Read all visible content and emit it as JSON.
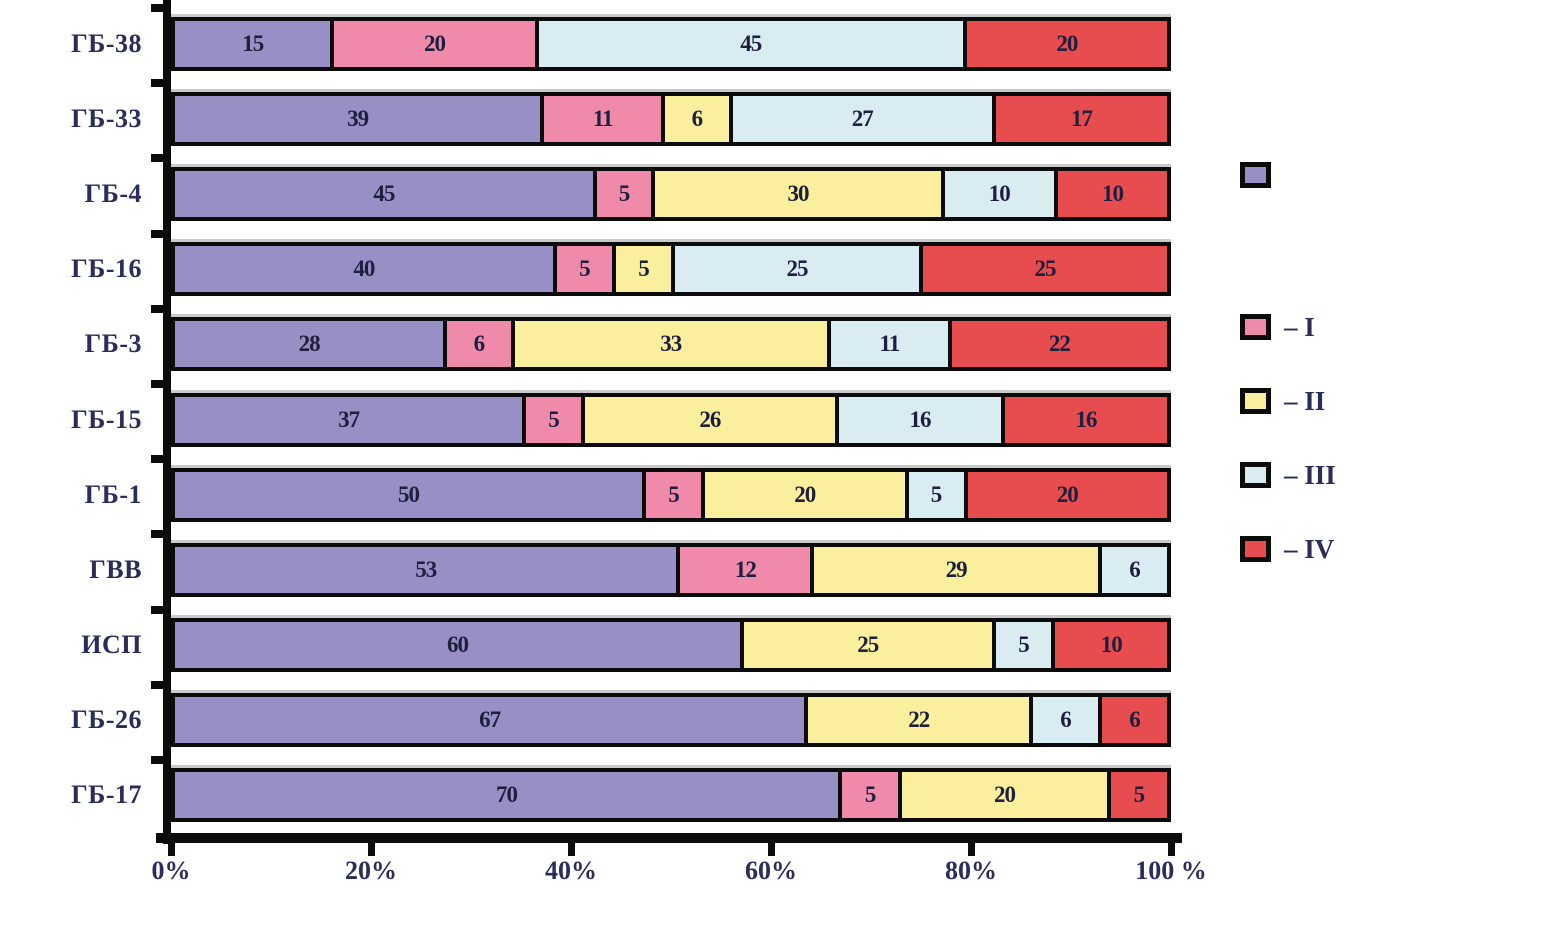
{
  "chart_data": {
    "type": "bar",
    "orientation": "horizontal-stacked",
    "title": "",
    "xlabel": "",
    "ylabel": "",
    "xlim": [
      0,
      100
    ],
    "grid": false,
    "legend_position": "right",
    "x_ticks": [
      "0%",
      "20%",
      "40%",
      "60%",
      "80%",
      "100 %"
    ],
    "categories": [
      "ГБ-38",
      "ГБ-33",
      "ГБ-4",
      "ГБ-16",
      "ГБ-3",
      "ГБ-15",
      "ГБ-1",
      "ГВВ",
      "ИСП",
      "ГБ-26",
      "ГБ-17"
    ],
    "series": [
      {
        "name": "base",
        "legend_label": "",
        "color": "#988fc4",
        "values": [
          15,
          39,
          45,
          40,
          28,
          37,
          50,
          53,
          60,
          67,
          70
        ]
      },
      {
        "name": "I",
        "legend_label": "– I",
        "color": "#f08aab",
        "values": [
          20,
          11,
          5,
          5,
          6,
          5,
          5,
          12,
          0,
          0,
          5
        ]
      },
      {
        "name": "II",
        "legend_label": "– II",
        "color": "#f9ef9d",
        "values": [
          0,
          6,
          30,
          5,
          33,
          26,
          20,
          29,
          25,
          22,
          20
        ]
      },
      {
        "name": "III",
        "legend_label": "– III",
        "color": "#d9ecf1",
        "values": [
          45,
          27,
          10,
          25,
          11,
          16,
          5,
          6,
          5,
          6,
          0
        ]
      },
      {
        "name": "IV",
        "legend_label": "– IV",
        "color": "#e74c4e",
        "values": [
          20,
          17,
          10,
          25,
          22,
          16,
          20,
          0,
          10,
          6,
          5
        ]
      }
    ]
  },
  "legend": {
    "items": [
      {
        "label": "",
        "color": "#988fc4",
        "name": "base"
      },
      {
        "label": "– I",
        "color": "#f08aab",
        "name": "I"
      },
      {
        "label": "– II",
        "color": "#f9ef9d",
        "name": "II"
      },
      {
        "label": "– III",
        "color": "#d9ecf1",
        "name": "III"
      },
      {
        "label": "– IV",
        "color": "#e74c4e",
        "name": "IV"
      }
    ]
  },
  "colors": {
    "axis": "#0b0b0b",
    "label_text": "#2c2c5a",
    "segment_text": "#1e1e3f",
    "background": "#ffffff"
  }
}
